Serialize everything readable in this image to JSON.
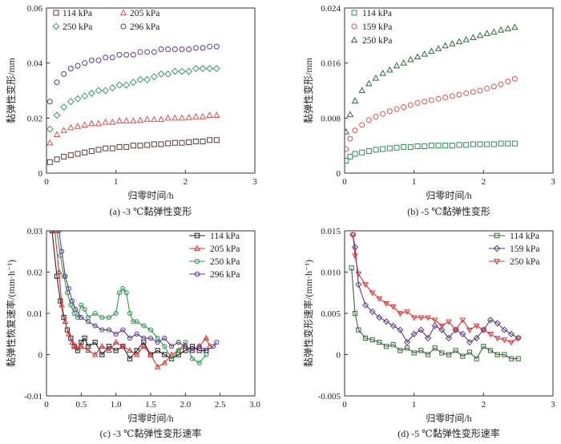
{
  "colors": {
    "114 kPa": "#5a3a3a",
    "205 kPa": "#e05050",
    "250 kPa": "#3a9a6a",
    "296 kPa": "#5a3a8a",
    "159 kPa": "#e05050",
    "green114": "#2e8b57",
    "violet159": "#5a3a8a"
  },
  "chart_data": [
    {
      "type": "scatter",
      "caption": "(a) -3 ℃黏弹性变形",
      "xlabel": "归零时间/h",
      "ylabel": "黏弹性变形/mm",
      "xlim": [
        0,
        3
      ],
      "ylim": [
        0,
        0.06
      ],
      "xticks": [
        "0",
        "1",
        "2",
        "3"
      ],
      "yticks": [
        "0",
        "0.02",
        "0.04",
        "0.06"
      ],
      "legend_placement": "top-left",
      "series": [
        {
          "name": "114 kPa",
          "marker": "square",
          "color": "#5a3a3a",
          "x": [
            0.05,
            0.15,
            0.25,
            0.35,
            0.45,
            0.55,
            0.65,
            0.75,
            0.85,
            0.95,
            1.05,
            1.15,
            1.25,
            1.35,
            1.45,
            1.55,
            1.65,
            1.75,
            1.85,
            1.95,
            2.05,
            2.15,
            2.25,
            2.35,
            2.45
          ],
          "y": [
            0.004,
            0.005,
            0.006,
            0.0065,
            0.007,
            0.0075,
            0.008,
            0.0085,
            0.009,
            0.009,
            0.0095,
            0.0095,
            0.01,
            0.01,
            0.0102,
            0.0105,
            0.0105,
            0.0108,
            0.011,
            0.011,
            0.0112,
            0.0115,
            0.0115,
            0.012,
            0.012
          ]
        },
        {
          "name": "205 kPa",
          "marker": "triangle",
          "color": "#e05050",
          "x": [
            0.05,
            0.15,
            0.25,
            0.35,
            0.45,
            0.55,
            0.65,
            0.75,
            0.85,
            0.95,
            1.05,
            1.15,
            1.25,
            1.35,
            1.45,
            1.55,
            1.65,
            1.75,
            1.85,
            1.95,
            2.05,
            2.15,
            2.25,
            2.35,
            2.45
          ],
          "y": [
            0.011,
            0.014,
            0.0155,
            0.0165,
            0.017,
            0.0175,
            0.018,
            0.018,
            0.0185,
            0.0185,
            0.019,
            0.019,
            0.019,
            0.0192,
            0.0195,
            0.0195,
            0.0195,
            0.02,
            0.02,
            0.02,
            0.0202,
            0.0205,
            0.0205,
            0.021,
            0.021
          ]
        },
        {
          "name": "250 kPa",
          "marker": "diamond",
          "color": "#3a9a6a",
          "x": [
            0.05,
            0.15,
            0.25,
            0.35,
            0.45,
            0.55,
            0.65,
            0.75,
            0.85,
            0.95,
            1.05,
            1.15,
            1.25,
            1.35,
            1.45,
            1.55,
            1.65,
            1.75,
            1.85,
            1.95,
            2.05,
            2.15,
            2.25,
            2.35,
            2.45
          ],
          "y": [
            0.016,
            0.021,
            0.024,
            0.026,
            0.027,
            0.028,
            0.029,
            0.03,
            0.03,
            0.031,
            0.032,
            0.032,
            0.033,
            0.034,
            0.034,
            0.035,
            0.036,
            0.036,
            0.037,
            0.037,
            0.037,
            0.038,
            0.038,
            0.038,
            0.038
          ]
        },
        {
          "name": "296 kPa",
          "marker": "circle",
          "color": "#5a3a8a",
          "x": [
            0.05,
            0.15,
            0.25,
            0.35,
            0.45,
            0.55,
            0.65,
            0.75,
            0.85,
            0.95,
            1.05,
            1.15,
            1.25,
            1.35,
            1.45,
            1.55,
            1.65,
            1.75,
            1.85,
            1.95,
            2.05,
            2.15,
            2.25,
            2.35,
            2.45
          ],
          "y": [
            0.026,
            0.033,
            0.036,
            0.038,
            0.039,
            0.04,
            0.041,
            0.041,
            0.042,
            0.042,
            0.043,
            0.043,
            0.043,
            0.044,
            0.044,
            0.044,
            0.045,
            0.045,
            0.045,
            0.045,
            0.045,
            0.0455,
            0.0455,
            0.046,
            0.046
          ]
        }
      ]
    },
    {
      "type": "scatter",
      "caption": "(b) -5 ℃黏弹性变形",
      "xlabel": "归零时间/h",
      "ylabel": "黏弹性变形/mm",
      "xlim": [
        0,
        3
      ],
      "ylim": [
        0,
        0.024
      ],
      "xticks": [
        "0",
        "1",
        "2",
        "3"
      ],
      "yticks": [
        "0",
        "0.008",
        "0.016",
        "0.024"
      ],
      "legend_placement": "top-left",
      "series": [
        {
          "name": "114 kPa",
          "marker": "square",
          "color": "#2e8b57",
          "x": [
            0.02,
            0.08,
            0.15,
            0.25,
            0.35,
            0.45,
            0.55,
            0.65,
            0.75,
            0.85,
            0.95,
            1.05,
            1.15,
            1.25,
            1.35,
            1.45,
            1.55,
            1.65,
            1.75,
            1.85,
            1.95,
            2.05,
            2.15,
            2.25,
            2.35,
            2.45
          ],
          "y": [
            0.0018,
            0.0024,
            0.0028,
            0.003,
            0.0032,
            0.0034,
            0.0035,
            0.0036,
            0.0037,
            0.0038,
            0.0038,
            0.0039,
            0.0039,
            0.004,
            0.004,
            0.004,
            0.004,
            0.0041,
            0.0041,
            0.0042,
            0.0042,
            0.0042,
            0.0042,
            0.0043,
            0.0043,
            0.0043
          ]
        },
        {
          "name": "159 kPa",
          "marker": "circle",
          "color": "#e05050",
          "x": [
            0.02,
            0.08,
            0.15,
            0.25,
            0.35,
            0.45,
            0.55,
            0.65,
            0.75,
            0.85,
            0.95,
            1.05,
            1.15,
            1.25,
            1.35,
            1.45,
            1.55,
            1.65,
            1.75,
            1.85,
            1.95,
            2.05,
            2.15,
            2.25,
            2.35,
            2.45
          ],
          "y": [
            0.0035,
            0.005,
            0.0062,
            0.007,
            0.0077,
            0.0082,
            0.0086,
            0.009,
            0.0093,
            0.0096,
            0.0099,
            0.0102,
            0.0104,
            0.0106,
            0.0108,
            0.011,
            0.0112,
            0.0114,
            0.0116,
            0.0118,
            0.012,
            0.0123,
            0.0126,
            0.0129,
            0.0133,
            0.0137
          ]
        },
        {
          "name": "250 kPa",
          "marker": "triangle",
          "color": "#2e6b3f",
          "x": [
            0.02,
            0.08,
            0.15,
            0.25,
            0.35,
            0.45,
            0.55,
            0.65,
            0.75,
            0.85,
            0.95,
            1.05,
            1.15,
            1.25,
            1.35,
            1.45,
            1.55,
            1.65,
            1.75,
            1.85,
            1.95,
            2.05,
            2.15,
            2.25,
            2.35,
            2.45
          ],
          "y": [
            0.006,
            0.0085,
            0.0105,
            0.012,
            0.013,
            0.0138,
            0.0145,
            0.015,
            0.0156,
            0.016,
            0.0165,
            0.0169,
            0.0173,
            0.0177,
            0.0181,
            0.0185,
            0.0188,
            0.0191,
            0.0194,
            0.0197,
            0.02,
            0.0203,
            0.0205,
            0.0208,
            0.021,
            0.0212
          ]
        }
      ]
    },
    {
      "type": "line",
      "caption": "(c) -3 ℃黏弹性变形速率",
      "xlabel": "归零时间/h",
      "ylabel": "黏弹性恢复速率/(mm·h⁻¹)",
      "xlim": [
        0,
        3.0
      ],
      "ylim": [
        -0.01,
        0.03
      ],
      "xticks": [
        "0",
        "0.5",
        "1.0",
        "1.5",
        "2.0",
        "2.5",
        "3.0"
      ],
      "yticks": [
        "-0.01",
        "0",
        "0.01",
        "0.02",
        "0.03"
      ],
      "legend_placement": "top-right",
      "series": [
        {
          "name": "114 kPa",
          "marker": "square",
          "color": "#222222",
          "x": [
            0.08,
            0.15,
            0.2,
            0.25,
            0.3,
            0.35,
            0.4,
            0.45,
            0.5,
            0.55,
            0.6,
            0.7,
            0.8,
            0.9,
            1.0,
            1.1,
            1.2,
            1.3,
            1.4,
            1.5,
            1.6,
            1.7,
            1.8,
            1.9,
            2.0,
            2.1,
            2.2,
            2.3
          ],
          "y": [
            0.03,
            0.019,
            0.013,
            0.009,
            0.006,
            0.004,
            0.002,
            0.001,
            0.003,
            0.004,
            0.002,
            0.003,
            0.0,
            0.002,
            0.001,
            0.002,
            -0.001,
            0.001,
            0.003,
            0.0,
            0.001,
            0.0,
            -0.001,
            0.0,
            0.001,
            0.002,
            0.001,
            0.001
          ]
        },
        {
          "name": "205 kPa",
          "marker": "triangle",
          "color": "#e03030",
          "x": [
            0.12,
            0.18,
            0.22,
            0.27,
            0.32,
            0.37,
            0.42,
            0.5,
            0.6,
            0.7,
            0.8,
            0.9,
            1.0,
            1.1,
            1.2,
            1.3,
            1.4,
            1.5,
            1.6,
            1.7,
            1.8,
            1.9,
            2.0,
            2.1,
            2.2,
            2.3,
            2.35
          ],
          "y": [
            0.03,
            0.02,
            0.012,
            0.008,
            0.005,
            0.003,
            0.002,
            0.002,
            0.001,
            0.0,
            0.002,
            0.001,
            0.003,
            0.002,
            0.001,
            0.0,
            0.002,
            0.0,
            -0.003,
            -0.002,
            0.0,
            0.001,
            0.002,
            0.001,
            0.002,
            0.004,
            0.002
          ]
        },
        {
          "name": "250 kPa",
          "marker": "circle",
          "color": "#2e9a4a",
          "x": [
            0.15,
            0.2,
            0.25,
            0.3,
            0.35,
            0.4,
            0.45,
            0.5,
            0.55,
            0.6,
            0.7,
            0.8,
            0.9,
            1.0,
            1.05,
            1.1,
            1.15,
            1.2,
            1.25,
            1.3,
            1.4,
            1.5,
            1.6,
            1.7,
            1.8,
            1.9,
            2.0,
            2.1,
            2.2,
            2.3
          ],
          "y": [
            0.03,
            0.024,
            0.019,
            0.015,
            0.012,
            0.01,
            0.009,
            0.012,
            0.011,
            0.009,
            0.01,
            0.009,
            0.009,
            0.01,
            0.015,
            0.016,
            0.015,
            0.01,
            0.008,
            0.008,
            0.007,
            0.006,
            0.004,
            0.002,
            -0.001,
            0.001,
            0.003,
            -0.001,
            -0.002,
            0.0
          ]
        },
        {
          "name": "296 kPa",
          "marker": "circle",
          "color": "#5a3a9a",
          "x": [
            0.18,
            0.22,
            0.27,
            0.32,
            0.37,
            0.42,
            0.5,
            0.6,
            0.7,
            0.8,
            0.9,
            1.0,
            1.1,
            1.2,
            1.3,
            1.4,
            1.5,
            1.6,
            1.7,
            1.8,
            1.9,
            2.0,
            2.1,
            2.2,
            2.3,
            2.4,
            2.45
          ],
          "y": [
            0.03,
            0.025,
            0.019,
            0.016,
            0.013,
            0.011,
            0.009,
            0.008,
            0.007,
            0.006,
            0.006,
            0.005,
            0.006,
            0.004,
            0.005,
            0.004,
            0.004,
            0.003,
            0.004,
            0.002,
            0.003,
            0.002,
            0.001,
            0.002,
            0.001,
            0.002,
            0.003
          ]
        }
      ]
    },
    {
      "type": "line",
      "caption": "(d) -5 ℃黏弹性变形速率",
      "xlabel": "归零时间/h",
      "ylabel": "黏弹性变形速率/(mm·h⁻¹)",
      "xlim": [
        0,
        3
      ],
      "ylim": [
        -0.005,
        0.015
      ],
      "xticks": [
        "0",
        "1",
        "2",
        "3"
      ],
      "yticks": [
        "-0.005",
        "0",
        "0.005",
        "0.010",
        "0.015"
      ],
      "legend_placement": "top-right",
      "series": [
        {
          "name": "114 kPa",
          "marker": "square",
          "color": "#3a6a3a",
          "x": [
            0.1,
            0.15,
            0.2,
            0.3,
            0.4,
            0.5,
            0.6,
            0.7,
            0.8,
            0.9,
            1.0,
            1.1,
            1.2,
            1.3,
            1.4,
            1.5,
            1.6,
            1.7,
            1.8,
            1.9,
            2.0,
            2.1,
            2.2,
            2.3,
            2.4,
            2.5
          ],
          "y": [
            0.0105,
            0.005,
            0.003,
            0.002,
            0.0018,
            0.0015,
            0.001,
            0.0012,
            0.0005,
            0.0008,
            0.0002,
            0.0005,
            0.0,
            0.0008,
            0.0002,
            0.0,
            0.0005,
            -0.0002,
            0.0003,
            -0.0005,
            0.001,
            0.0005,
            0.0,
            0.0,
            -0.0005,
            -0.0005
          ]
        },
        {
          "name": "159 kPa",
          "marker": "diamond",
          "color": "#5a3a8a",
          "x": [
            0.12,
            0.15,
            0.2,
            0.3,
            0.4,
            0.5,
            0.6,
            0.7,
            0.8,
            0.9,
            1.0,
            1.1,
            1.2,
            1.3,
            1.4,
            1.5,
            1.6,
            1.7,
            1.8,
            1.9,
            2.0,
            2.1,
            2.2,
            2.3,
            2.4,
            2.5
          ],
          "y": [
            0.0145,
            0.013,
            0.0085,
            0.006,
            0.0052,
            0.0045,
            0.004,
            0.0035,
            0.003,
            0.0015,
            0.0025,
            0.003,
            0.002,
            0.0035,
            0.003,
            0.002,
            0.003,
            0.0025,
            0.0015,
            0.002,
            0.003,
            0.0042,
            0.0038,
            0.003,
            0.0025,
            0.002
          ]
        },
        {
          "name": "250 kPa",
          "marker": "triangle-down",
          "color": "#e03030",
          "x": [
            0.12,
            0.15,
            0.2,
            0.3,
            0.4,
            0.5,
            0.6,
            0.7,
            0.8,
            0.9,
            1.0,
            1.1,
            1.2,
            1.3,
            1.4,
            1.5,
            1.6,
            1.7,
            1.8,
            1.9,
            2.0,
            2.1,
            2.2,
            2.3,
            2.4,
            2.5
          ],
          "y": [
            0.0145,
            0.012,
            0.0098,
            0.0085,
            0.0075,
            0.0068,
            0.0062,
            0.0058,
            0.005,
            0.0052,
            0.0045,
            0.0045,
            0.0045,
            0.0042,
            0.0035,
            0.004,
            0.003,
            0.0042,
            0.003,
            0.0035,
            0.003,
            0.0025,
            0.002,
            0.0018,
            0.0015,
            0.002
          ]
        }
      ]
    }
  ]
}
